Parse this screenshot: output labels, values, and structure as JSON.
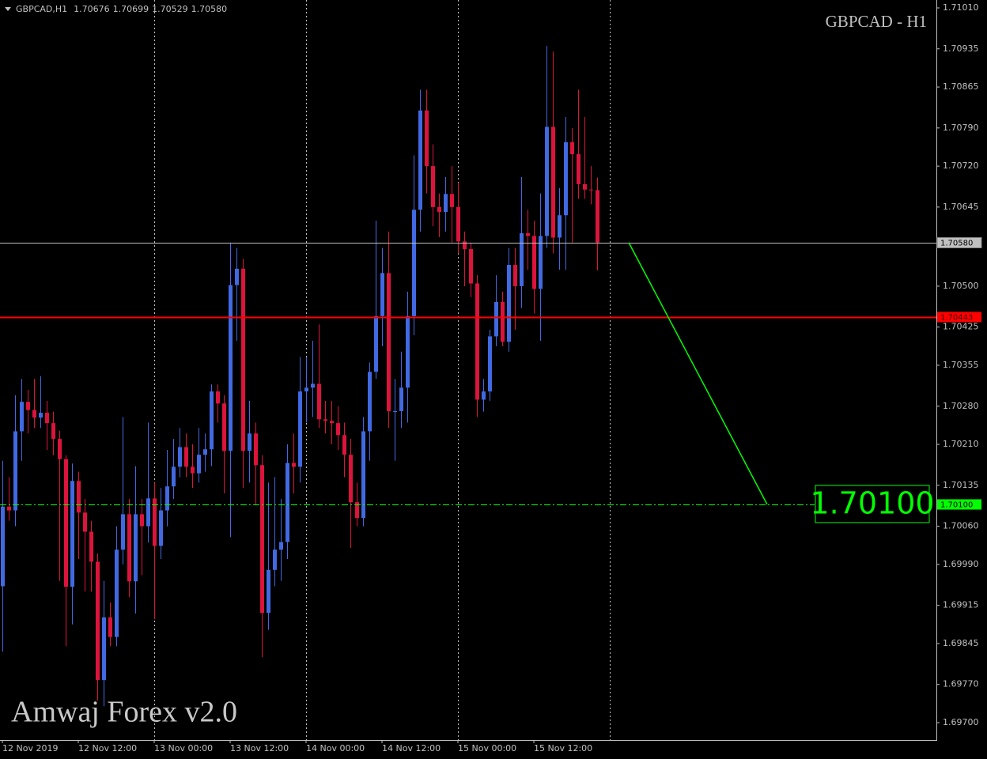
{
  "chart_data": {
    "type": "candlestick",
    "header": {
      "symbol": "GBPCAD,H1",
      "ohlc": [
        "1.70676",
        "1.70699",
        "1.70529",
        "1.70580"
      ]
    },
    "title": "GBPCAD - H1",
    "watermark": "Amwaj Forex v2.0",
    "up_color": "#4169e1",
    "down_color": "#dc143c",
    "categories": [
      "12 Nov 2019",
      null,
      null,
      null,
      null,
      null,
      null,
      null,
      null,
      null,
      null,
      null,
      "12 Nov 12:00",
      null,
      null,
      null,
      null,
      null,
      null,
      null,
      null,
      null,
      null,
      null,
      "13 Nov 00:00",
      null,
      null,
      null,
      null,
      null,
      null,
      null,
      null,
      null,
      null,
      null,
      "13 Nov 12:00",
      null,
      null,
      null,
      null,
      null,
      null,
      null,
      null,
      null,
      null,
      null,
      "14 Nov 00:00",
      null,
      null,
      null,
      null,
      null,
      null,
      null,
      null,
      null,
      null,
      null,
      "14 Nov 12:00",
      null,
      null,
      null,
      null,
      null,
      null,
      null,
      null,
      null,
      null,
      null,
      "15 Nov 00:00",
      null,
      null,
      null,
      null,
      null,
      null,
      null,
      null,
      null,
      null,
      null,
      "15 Nov 12:00",
      null,
      null,
      null,
      null,
      null,
      null,
      null,
      null,
      null,
      null
    ],
    "open": [
      1.6995,
      1.70096,
      1.70089,
      1.70234,
      1.70288,
      1.70273,
      1.70259,
      1.70268,
      1.70249,
      1.7022,
      1.70183,
      1.69949,
      1.70143,
      1.70085,
      1.7005,
      1.69995,
      1.69778,
      1.69893,
      1.69857,
      1.70017,
      1.70082,
      1.69959,
      1.70082,
      1.7006,
      1.70111,
      1.70024,
      1.70089,
      1.70133,
      1.70169,
      1.70205,
      1.70169,
      1.70157,
      1.70191,
      1.70201,
      1.70307,
      1.70285,
      1.70198,
      1.70502,
      1.70532,
      1.70198,
      1.7023,
      1.70172,
      1.69901,
      1.6998,
      1.70017,
      1.70031,
      1.70176,
      1.70169,
      1.70307,
      1.70314,
      1.70321,
      1.70256,
      1.70253,
      1.70249,
      1.70227,
      1.70191,
      1.70104,
      1.70075,
      1.70234,
      1.70343,
      1.70445,
      1.70524,
      1.70271,
      1.70271,
      1.70314,
      1.70445,
      1.7064,
      1.70822,
      1.7072,
      1.70645,
      1.70636,
      1.70669,
      1.70645,
      1.70582,
      1.70568,
      1.70505,
      1.70292,
      1.70307,
      1.70408,
      1.70471,
      1.70398,
      1.70539,
      1.705,
      1.70597,
      1.70592,
      1.70495,
      1.70592,
      1.70792,
      1.70589,
      1.7063,
      1.70764,
      1.70742,
      1.70687,
      1.70677,
      1.70676
    ],
    "high": [
      1.7018,
      1.7015,
      1.703,
      1.7033,
      1.7031,
      1.7033,
      1.70335,
      1.7029,
      1.7027,
      1.70235,
      1.7019,
      1.70175,
      1.7016,
      1.7011,
      1.7007,
      1.7001,
      1.6996,
      1.6992,
      1.7006,
      1.7026,
      1.7011,
      1.7017,
      1.7011,
      1.7025,
      1.7014,
      1.7013,
      1.702,
      1.7022,
      1.7024,
      1.7023,
      1.7021,
      1.7024,
      1.7023,
      1.7032,
      1.7032,
      1.703,
      1.7058,
      1.7057,
      1.7055,
      1.7029,
      1.7025,
      1.7019,
      1.7014,
      1.7015,
      1.7011,
      1.7021,
      1.7023,
      1.7037,
      1.7037,
      1.704,
      1.7043,
      1.7029,
      1.7029,
      1.7028,
      1.7025,
      1.7022,
      1.7014,
      1.7026,
      1.7036,
      1.7062,
      1.7057,
      1.706,
      1.7033,
      1.7038,
      1.7049,
      1.7074,
      1.7086,
      1.7086,
      1.7076,
      1.7067,
      1.707,
      1.7072,
      1.7069,
      1.706,
      1.7058,
      1.7052,
      1.7033,
      1.7042,
      1.7052,
      1.7049,
      1.7057,
      1.7057,
      1.707,
      1.7064,
      1.7062,
      1.7067,
      1.7094,
      1.7093,
      1.7068,
      1.7081,
      1.7079,
      1.7086,
      1.7081,
      1.7072,
      1.70699
    ],
    "low": [
      1.6983,
      1.7007,
      1.7006,
      1.7018,
      1.7023,
      1.7024,
      1.7024,
      1.702,
      1.7019,
      1.6996,
      1.6984,
      1.6988,
      1.7,
      1.6994,
      1.6994,
      1.6974,
      1.6973,
      1.6984,
      1.6984,
      1.6999,
      1.6993,
      1.699,
      1.6997,
      1.7003,
      1.6989,
      1.7,
      1.7006,
      1.7011,
      1.7015,
      1.7015,
      1.7013,
      1.7014,
      1.7016,
      1.7017,
      1.7025,
      1.7012,
      1.7004,
      1.704,
      1.7013,
      1.7014,
      1.701,
      1.6982,
      1.6987,
      1.6995,
      1.6996,
      1.7,
      1.7012,
      1.7014,
      1.7025,
      1.7026,
      1.7024,
      1.7023,
      1.7021,
      1.702,
      1.7015,
      1.7002,
      1.7006,
      1.7006,
      1.7018,
      1.7033,
      1.7039,
      1.7024,
      1.7018,
      1.7024,
      1.7025,
      1.7041,
      1.706,
      1.7067,
      1.7061,
      1.7059,
      1.706,
      1.7058,
      1.7056,
      1.705,
      1.7048,
      1.7026,
      1.7027,
      1.7029,
      1.7039,
      1.7039,
      1.7038,
      1.7042,
      1.7046,
      1.7053,
      1.7045,
      1.704,
      1.7057,
      1.7056,
      1.7053,
      1.7053,
      1.7058,
      1.7066,
      1.7066,
      1.7065,
      1.70529
    ],
    "close": [
      1.70096,
      1.70089,
      1.70234,
      1.70288,
      1.70273,
      1.70259,
      1.70268,
      1.70249,
      1.7022,
      1.70183,
      1.69949,
      1.70143,
      1.70085,
      1.7005,
      1.69995,
      1.69778,
      1.69893,
      1.69857,
      1.70017,
      1.70082,
      1.69959,
      1.70082,
      1.7006,
      1.70111,
      1.70024,
      1.70089,
      1.70133,
      1.70169,
      1.70205,
      1.70169,
      1.70157,
      1.70191,
      1.70201,
      1.70307,
      1.70285,
      1.70198,
      1.70502,
      1.70532,
      1.70198,
      1.7023,
      1.70172,
      1.69901,
      1.6998,
      1.70017,
      1.70031,
      1.70176,
      1.70169,
      1.70307,
      1.70314,
      1.70321,
      1.70256,
      1.70253,
      1.70249,
      1.70227,
      1.70191,
      1.70104,
      1.70075,
      1.70234,
      1.70343,
      1.70445,
      1.70524,
      1.70271,
      1.70271,
      1.70314,
      1.70445,
      1.7064,
      1.70822,
      1.7072,
      1.70645,
      1.70636,
      1.70669,
      1.70645,
      1.70582,
      1.70568,
      1.70505,
      1.70292,
      1.70307,
      1.70408,
      1.70471,
      1.70398,
      1.70539,
      1.705,
      1.70597,
      1.70592,
      1.70495,
      1.70592,
      1.70792,
      1.70589,
      1.7063,
      1.70764,
      1.70742,
      1.70687,
      1.70677,
      1.70676,
      1.7058
    ],
    "ylim": [
      1.697,
      1.7101
    ],
    "yticks": [
      {
        "value": 1.7101,
        "label": "1.71010"
      },
      {
        "value": 1.70935,
        "label": "1.70935"
      },
      {
        "value": 1.70865,
        "label": "1.70865"
      },
      {
        "value": 1.7079,
        "label": "1.70790"
      },
      {
        "value": 1.7072,
        "label": "1.70720"
      },
      {
        "value": 1.70645,
        "label": "1.70645"
      },
      {
        "value": 1.705,
        "label": "1.70500"
      },
      {
        "value": 1.70425,
        "label": "1.70425"
      },
      {
        "value": 1.70355,
        "label": "1.70355"
      },
      {
        "value": 1.7028,
        "label": "1.70280"
      },
      {
        "value": 1.7021,
        "label": "1.70210"
      },
      {
        "value": 1.70135,
        "label": "1.70135"
      },
      {
        "value": 1.7006,
        "label": "1.70060"
      },
      {
        "value": 1.6999,
        "label": "1.69990"
      },
      {
        "value": 1.69915,
        "label": "1.69915"
      },
      {
        "value": 1.69845,
        "label": "1.69845"
      },
      {
        "value": 1.6977,
        "label": "1.69770"
      },
      {
        "value": 1.697,
        "label": "1.69700"
      }
    ],
    "levels": [
      {
        "value": 1.7058,
        "label": "1.70580",
        "color": "#c0c0c0"
      },
      {
        "value": 1.70443,
        "label": "1.70443",
        "color": "#ff0000"
      },
      {
        "value": 1.701,
        "label": "1.70100",
        "color": "#00ff00"
      }
    ],
    "target": {
      "value": 1.701,
      "label": "1.70100",
      "color": "#00ff00"
    }
  }
}
